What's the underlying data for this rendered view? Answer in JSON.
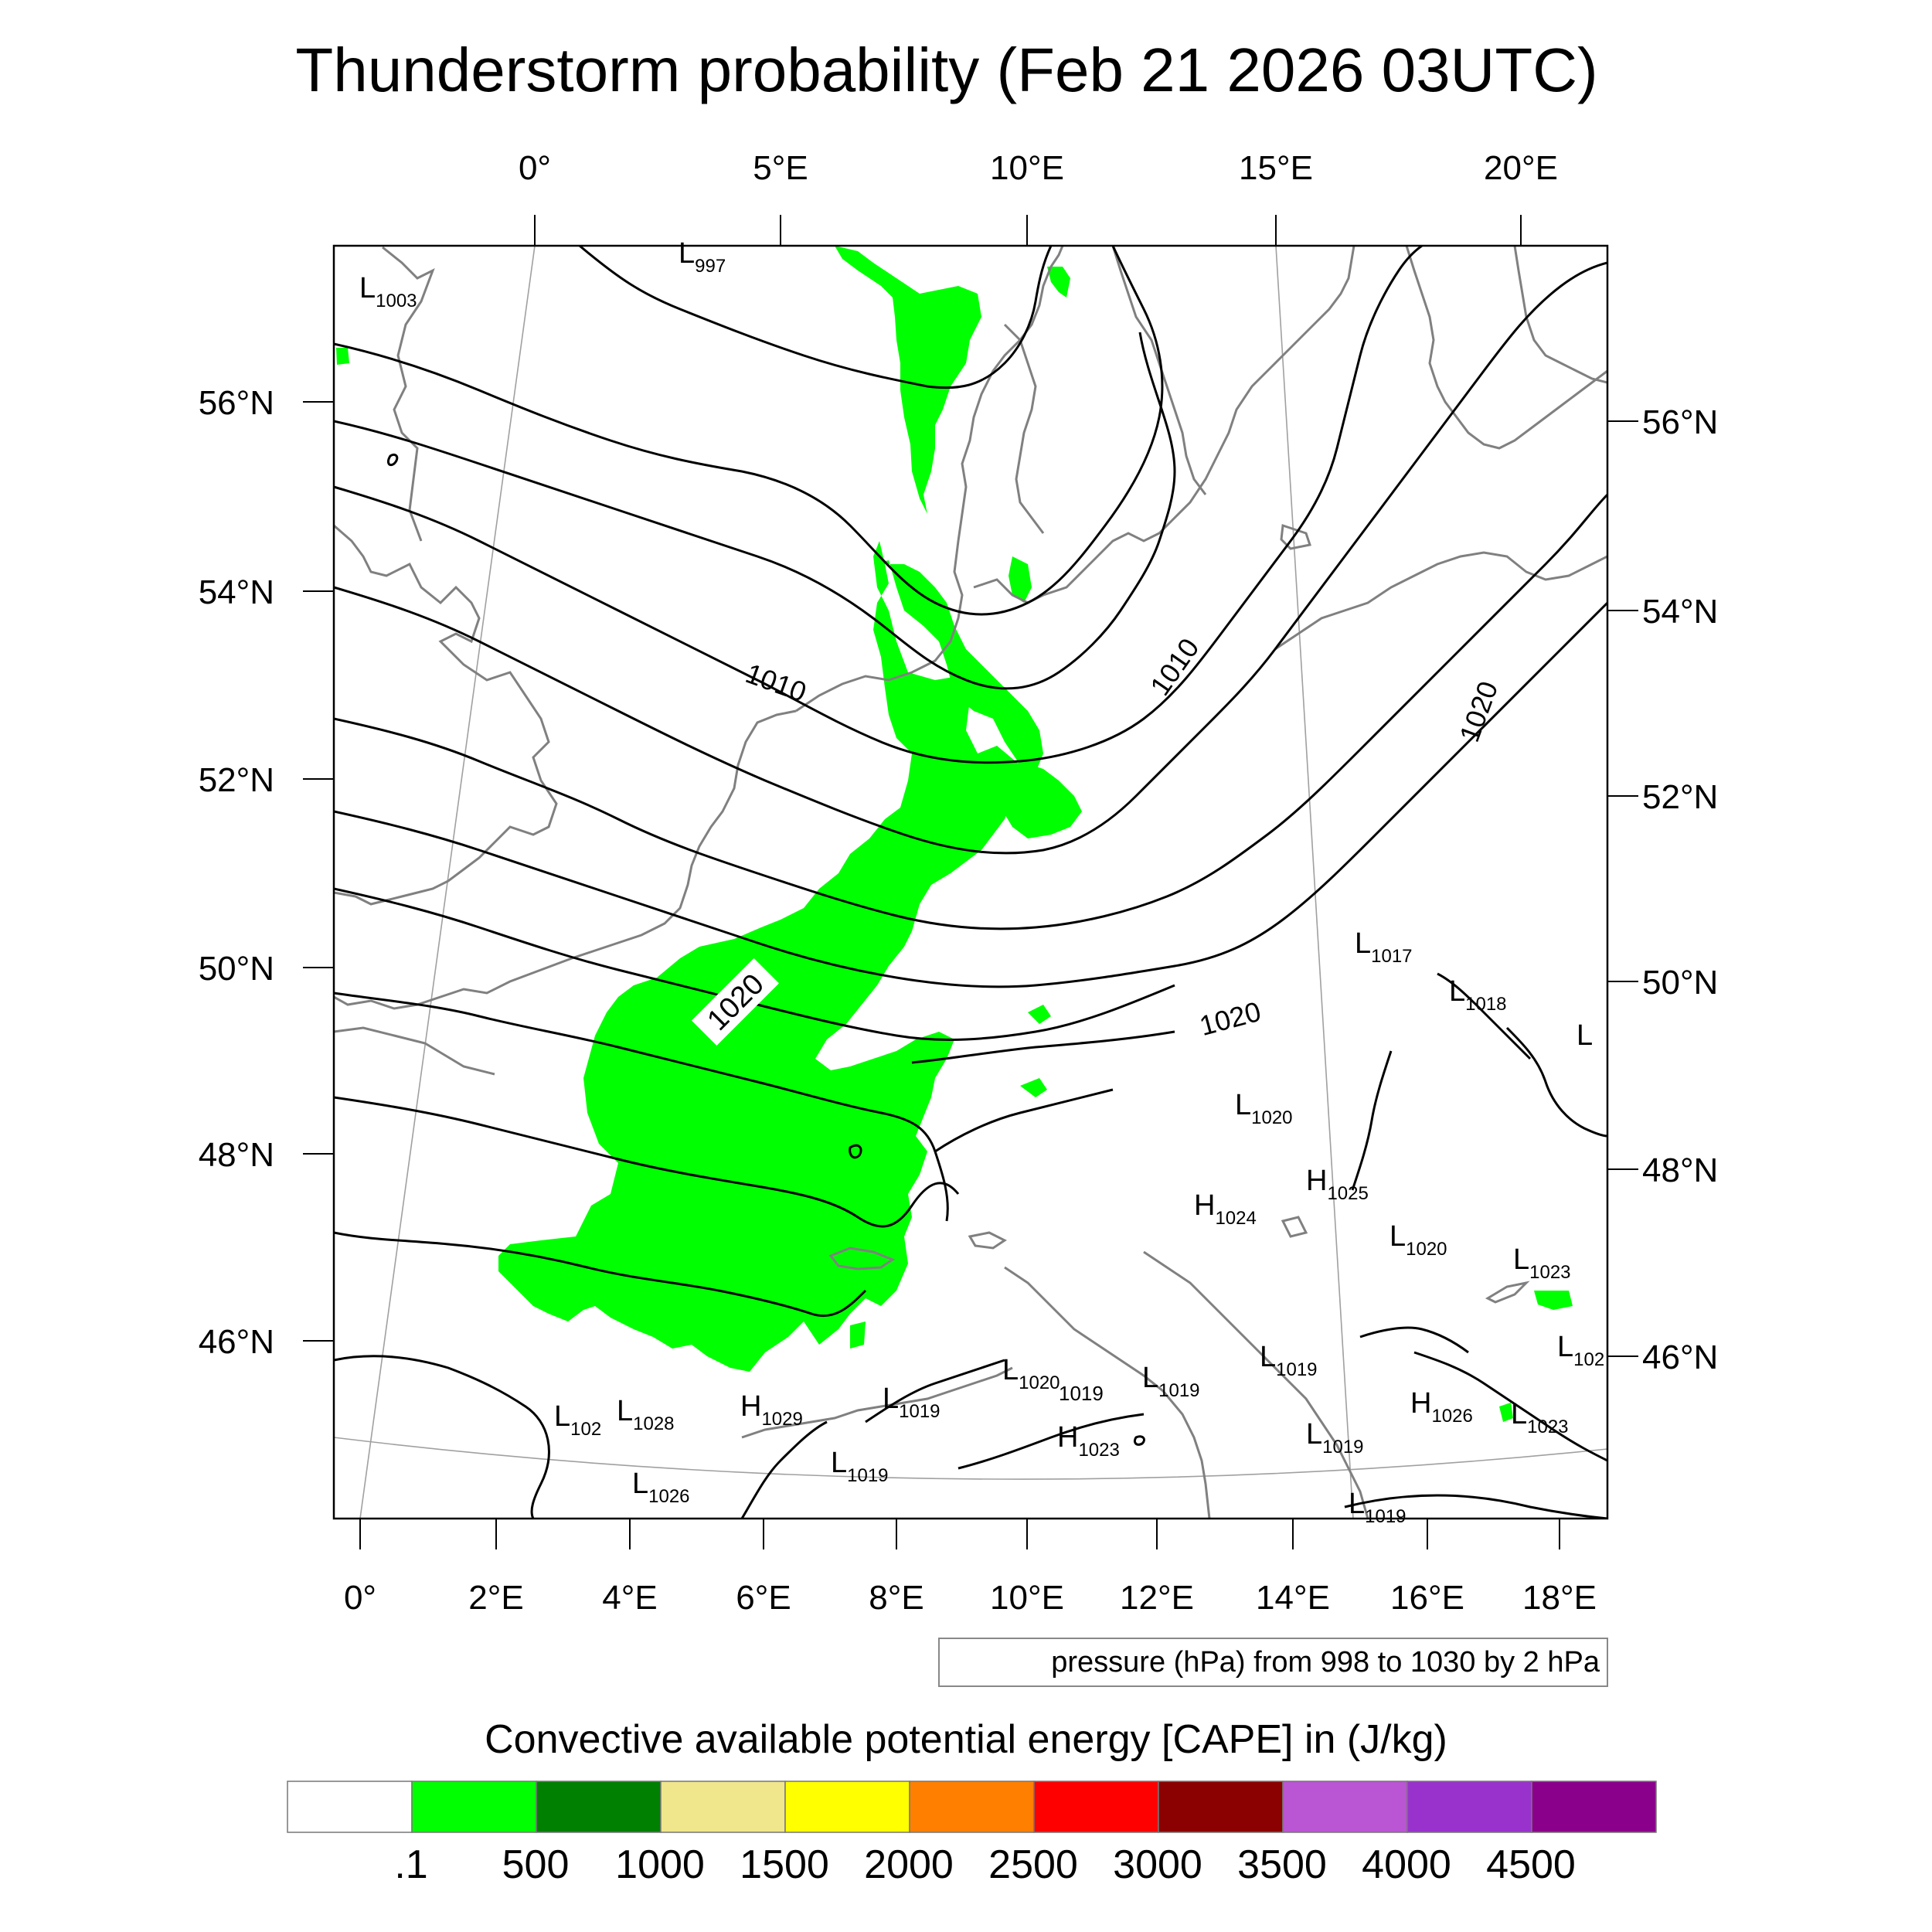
{
  "title": "Thunderstorm probability (Feb 21 2026 03UTC)",
  "top_axis_labels": [
    "0°",
    "5°E",
    "10°E",
    "15°E",
    "20°E"
  ],
  "bottom_axis_labels": [
    "0°",
    "2°E",
    "4°E",
    "6°E",
    "8°E",
    "10°E",
    "12°E",
    "14°E",
    "16°E",
    "18°E"
  ],
  "left_axis_labels": [
    "56°N",
    "54°N",
    "52°N",
    "50°N",
    "48°N",
    "46°N"
  ],
  "right_axis_labels": [
    "56°N",
    "54°N",
    "52°N",
    "50°N",
    "48°N",
    "46°N"
  ],
  "contour_labels": [
    "1010",
    "1010",
    "1020",
    "1020",
    "1020"
  ],
  "pressure_centers": [
    {
      "type": "L",
      "value": "997"
    },
    {
      "type": "L",
      "value": "1003"
    },
    {
      "type": "L",
      "value": "1017"
    },
    {
      "type": "L",
      "value": "1018"
    },
    {
      "type": "L",
      "value": ""
    },
    {
      "type": "L",
      "value": "1020"
    },
    {
      "type": "H",
      "value": "1025"
    },
    {
      "type": "H",
      "value": "1024"
    },
    {
      "type": "L",
      "value": "1020"
    },
    {
      "type": "L",
      "value": "1023"
    },
    {
      "type": "L",
      "value": "102"
    },
    {
      "type": "L",
      "value": "1019"
    },
    {
      "type": "L",
      "value": "1019"
    },
    {
      "type": "L",
      "value": "1020"
    },
    {
      "type": "",
      "value": "1019"
    },
    {
      "type": "H",
      "value": "1026"
    },
    {
      "type": "L",
      "value": "1023"
    },
    {
      "type": "L",
      "value": "1019"
    },
    {
      "type": "H",
      "value": "1023"
    },
    {
      "type": "L",
      "value": "1019"
    },
    {
      "type": "H",
      "value": "1029"
    },
    {
      "type": "L",
      "value": "1019"
    },
    {
      "type": "L",
      "value": "102"
    },
    {
      "type": "L",
      "value": "1028"
    },
    {
      "type": "L",
      "value": "1026"
    }
  ],
  "contour_info": "pressure (hPa) from 998 to 1030 by 2 hPa",
  "colorbar": {
    "title": "Convective available potential energy [CAPE] in (J/kg)",
    "colors": [
      "#ffffff",
      "#00ff00",
      "#008000",
      "#f0e68c",
      "#ffff00",
      "#ff8000",
      "#ff0000",
      "#8b0000",
      "#ba55d3",
      "#9932cc",
      "#8b008b"
    ],
    "tick_labels": [
      ".1",
      "500",
      "1000",
      "1500",
      "2000",
      "2500",
      "3000",
      "3500",
      "4000",
      "4500"
    ]
  },
  "colors": {
    "cape_green": "#00ff00",
    "coastline": "#808080",
    "isobar": "#000000"
  }
}
